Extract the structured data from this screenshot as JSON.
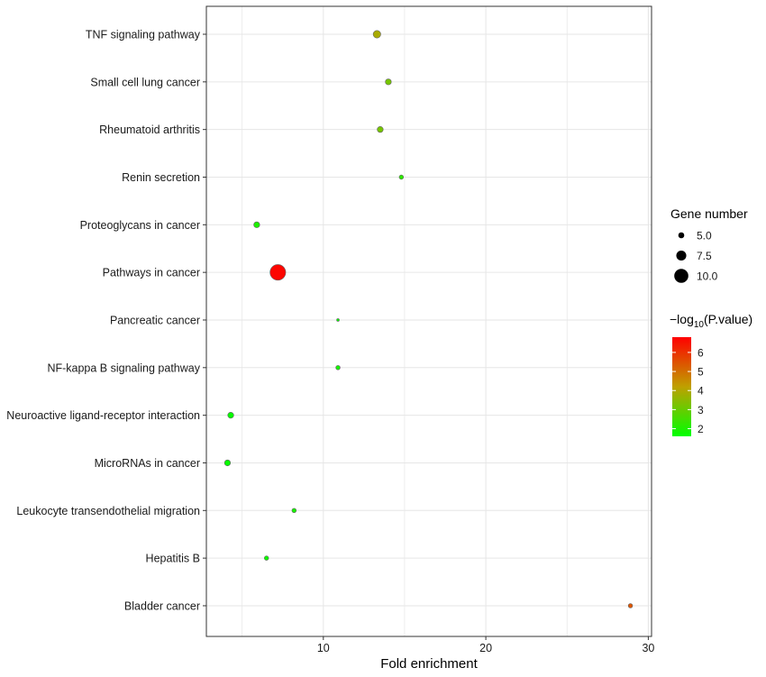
{
  "chart_data": {
    "type": "scatter",
    "xlabel": "Fold enrichment",
    "ylabel": "",
    "xlim": [
      2.8,
      30.2
    ],
    "x_ticks": [
      10,
      20,
      30
    ],
    "grid": true,
    "legend_placement": "right",
    "categories": [
      "TNF signaling pathway",
      "Small cell lung cancer",
      "Rheumatoid arthritis",
      "Renin secretion",
      "Proteoglycans in cancer",
      "Pathways in cancer",
      "Pancreatic cancer",
      "NF-kappa B signaling pathway",
      "Neuroactive ligand-receptor interaction",
      "MicroRNAs in cancer",
      "Leukocyte transendothelial migration",
      "Hepatitis B",
      "Bladder cancer"
    ],
    "points": [
      {
        "term": "TNF signaling pathway",
        "fold_enrichment": 13.3,
        "gene_number": 6,
        "neg_log10_p": 3.9
      },
      {
        "term": "Small cell lung cancer",
        "fold_enrichment": 14.0,
        "gene_number": 5,
        "neg_log10_p": 3.2
      },
      {
        "term": "Rheumatoid arthritis",
        "fold_enrichment": 13.5,
        "gene_number": 5,
        "neg_log10_p": 3.2
      },
      {
        "term": "Renin secretion",
        "fold_enrichment": 14.8,
        "gene_number": 4,
        "neg_log10_p": 2.2
      },
      {
        "term": "Proteoglycans in cancer",
        "fold_enrichment": 5.9,
        "gene_number": 5,
        "neg_log10_p": 2.0
      },
      {
        "term": "Pathways in cancer",
        "fold_enrichment": 7.2,
        "gene_number": 11,
        "neg_log10_p": 6.7
      },
      {
        "term": "Pancreatic cancer",
        "fold_enrichment": 10.9,
        "gene_number": 3,
        "neg_log10_p": 1.7
      },
      {
        "term": "NF-kappa B signaling pathway",
        "fold_enrichment": 10.9,
        "gene_number": 4,
        "neg_log10_p": 1.9
      },
      {
        "term": "Neuroactive ligand-receptor interaction",
        "fold_enrichment": 4.3,
        "gene_number": 5,
        "neg_log10_p": 1.7
      },
      {
        "term": "MicroRNAs in cancer",
        "fold_enrichment": 4.1,
        "gene_number": 5,
        "neg_log10_p": 1.7
      },
      {
        "term": "Leukocyte transendothelial migration",
        "fold_enrichment": 8.2,
        "gene_number": 4,
        "neg_log10_p": 1.9
      },
      {
        "term": "Hepatitis B",
        "fold_enrichment": 6.5,
        "gene_number": 4,
        "neg_log10_p": 1.8
      },
      {
        "term": "Bladder cancer",
        "fold_enrichment": 28.9,
        "gene_number": 4,
        "neg_log10_p": 5.4
      }
    ],
    "size_legend": {
      "title": "Gene number",
      "values": [
        5.0,
        7.5,
        10.0
      ],
      "labels": [
        "5.0",
        "7.5",
        "10.0"
      ]
    },
    "color_legend": {
      "title_prefix": "−log",
      "title_subscript": "10",
      "title_suffix": "(P.value)",
      "min": 1.6,
      "max": 6.8,
      "ticks": [
        2,
        3,
        4,
        5,
        6
      ],
      "tick_labels": [
        "2",
        "3",
        "4",
        "5",
        "6"
      ],
      "low_color": "#00ff00",
      "high_color": "#ff0000"
    },
    "colors": {
      "panel_background": "#ffffff",
      "panel_border": "#333333",
      "grid": "#e6e6e6",
      "point_outline": "#666666"
    }
  }
}
